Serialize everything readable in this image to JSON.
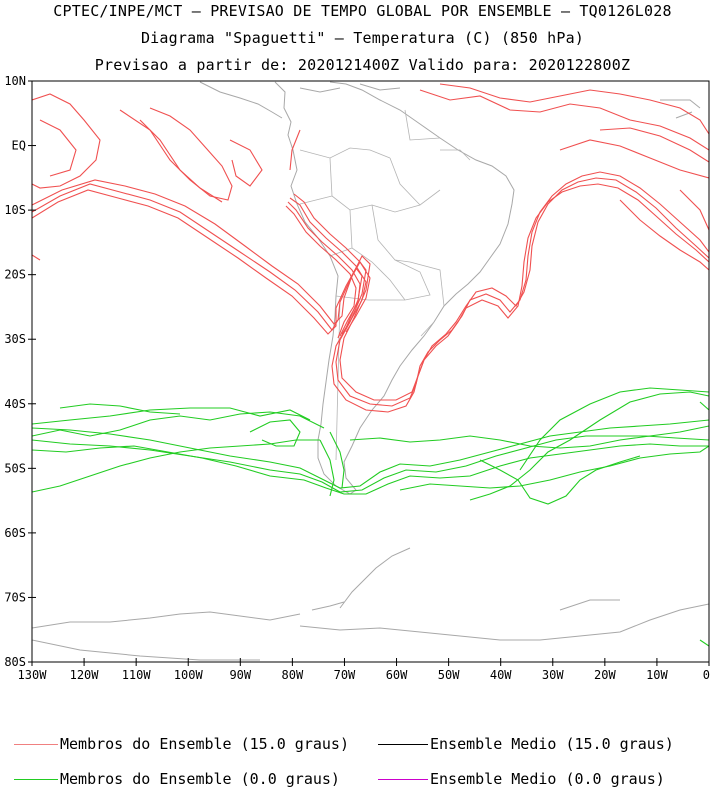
{
  "title": {
    "line1": "CPTEC/INPE/MCT – PREVISAO DE TEMPO GLOBAL POR ENSEMBLE – TQ0126L028",
    "line2": "Diagrama \"Spaguetti\" – Temperatura (C) (850 hPa)",
    "line3": "Previsao a partir de: 2020121400Z  Valido para: 2020122800Z"
  },
  "map": {
    "region": "South America and South Atlantic / Southeast Pacific",
    "lon_range": [
      -130,
      0
    ],
    "lat_range": [
      -80,
      10
    ],
    "lat_ticks": [
      {
        "value": 10,
        "label": "10N"
      },
      {
        "value": 0,
        "label": "EQ"
      },
      {
        "value": -10,
        "label": "10S"
      },
      {
        "value": -20,
        "label": "20S"
      },
      {
        "value": -30,
        "label": "30S"
      },
      {
        "value": -40,
        "label": "40S"
      },
      {
        "value": -50,
        "label": "50S"
      },
      {
        "value": -60,
        "label": "60S"
      },
      {
        "value": -70,
        "label": "70S"
      },
      {
        "value": -80,
        "label": "80S"
      }
    ],
    "lon_ticks": [
      {
        "value": -130,
        "label": "130W"
      },
      {
        "value": -120,
        "label": "120W"
      },
      {
        "value": -110,
        "label": "110W"
      },
      {
        "value": -100,
        "label": "100W"
      },
      {
        "value": -90,
        "label": "90W"
      },
      {
        "value": -80,
        "label": "80W"
      },
      {
        "value": -70,
        "label": "70W"
      },
      {
        "value": -60,
        "label": "60W"
      },
      {
        "value": -50,
        "label": "50W"
      },
      {
        "value": -40,
        "label": "40W"
      },
      {
        "value": -30,
        "label": "30W"
      },
      {
        "value": -20,
        "label": "20W"
      },
      {
        "value": -10,
        "label": "10W"
      },
      {
        "value": 0,
        "label": "0"
      }
    ]
  },
  "colors": {
    "member_15": "#f05050",
    "member_0": "#22cc22",
    "mean_15": "#000000",
    "mean_0": "#cc00cc",
    "coast": "#a8a8a8"
  },
  "legend": [
    {
      "label": "Membros do Ensemble (15.0 graus)",
      "color": "#f08080"
    },
    {
      "label": "Ensemble Medio (15.0 graus)",
      "color": "#000000"
    },
    {
      "label": "Membros do Ensemble (0.0 graus)",
      "color": "#22cc22"
    },
    {
      "label": "Ensemble Medio (0.0 graus)",
      "color": "#cc00cc"
    }
  ]
}
